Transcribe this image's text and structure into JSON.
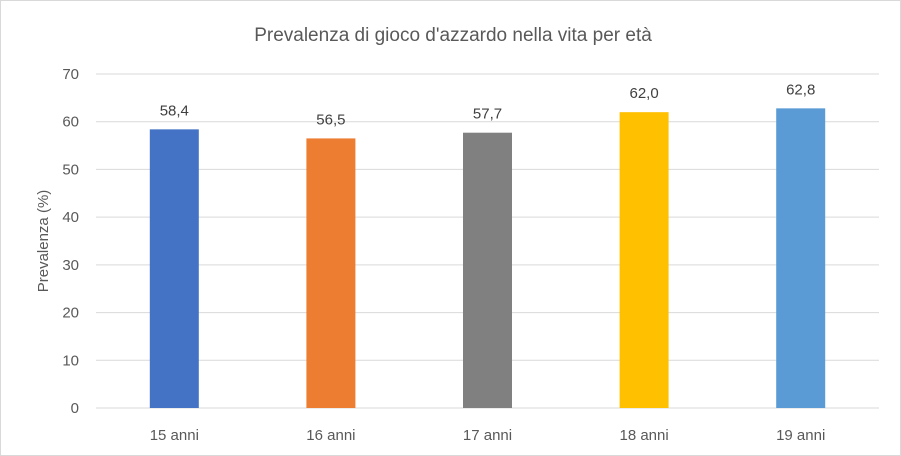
{
  "chart_data": {
    "type": "bar",
    "title": "Prevalenza di gioco d'azzardo nella vita per età",
    "xlabel": "",
    "ylabel": "Prevalenza (%)",
    "categories": [
      "15 anni",
      "16 anni",
      "17 anni",
      "18 anni",
      "19 anni"
    ],
    "values": [
      58.4,
      56.5,
      57.7,
      62.0,
      62.8
    ],
    "data_labels": [
      "58,4",
      "56,5",
      "57,7",
      "62,0",
      "62,8"
    ],
    "colors": [
      "#4472c4",
      "#ed7d31",
      "#808080",
      "#ffc000",
      "#5b9bd5"
    ],
    "ylim": [
      0,
      70
    ],
    "yticks": [
      0,
      10,
      20,
      30,
      40,
      50,
      60,
      70
    ],
    "grid": true,
    "legend": "none"
  }
}
